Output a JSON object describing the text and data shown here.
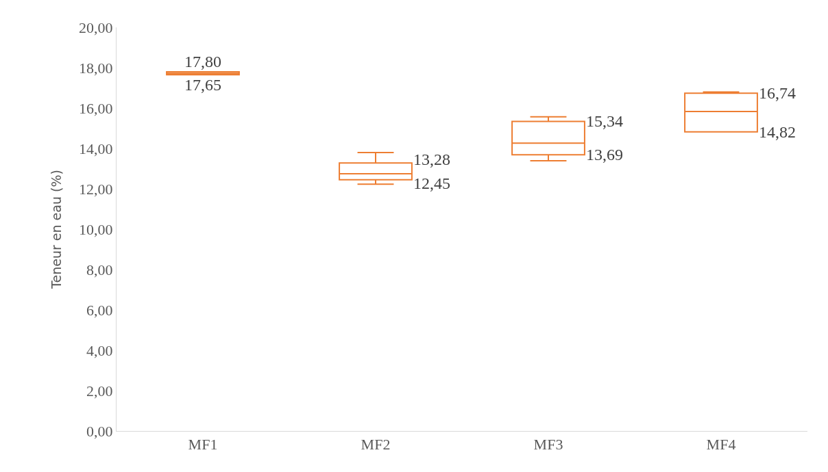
{
  "chart_data": {
    "type": "box",
    "ylabel": "Teneur en eau (%)",
    "categories": [
      "MF1",
      "MF2",
      "MF3",
      "MF4"
    ],
    "boxes": [
      {
        "low": 17.65,
        "q1": 17.65,
        "median": 17.72,
        "q3": 17.8,
        "high": 17.8
      },
      {
        "low": 12.23,
        "q1": 12.45,
        "median": 12.75,
        "q3": 13.28,
        "high": 13.8
      },
      {
        "low": 13.39,
        "q1": 13.69,
        "median": 14.26,
        "q3": 15.34,
        "high": 15.57
      },
      {
        "low": 14.82,
        "q1": 14.82,
        "median": 15.83,
        "q3": 16.74,
        "high": 16.8
      }
    ],
    "color": "#ed7d31",
    "ylim": [
      0,
      20
    ],
    "yticks": [
      {
        "value": 0,
        "label": "0,00"
      },
      {
        "value": 2,
        "label": "2,00"
      },
      {
        "value": 4,
        "label": "4,00"
      },
      {
        "value": 6,
        "label": "6,00"
      },
      {
        "value": 8,
        "label": "8,00"
      },
      {
        "value": 10,
        "label": "10,00"
      },
      {
        "value": 12,
        "label": "12,00"
      },
      {
        "value": 14,
        "label": "14,00"
      },
      {
        "value": 16,
        "label": "16,00"
      },
      {
        "value": 18,
        "label": "18,00"
      },
      {
        "value": 20,
        "label": "20,00"
      }
    ],
    "grid": false,
    "annotations": [
      {
        "text": "17,80",
        "x": "MF1",
        "y": 17.8
      },
      {
        "text": "17,65",
        "x": "MF1",
        "y": 17.65
      },
      {
        "text": "13,28",
        "x": "MF2",
        "y": 13.28
      },
      {
        "text": "12,45",
        "x": "MF2",
        "y": 12.45
      },
      {
        "text": "15,34",
        "x": "MF3",
        "y": 15.34
      },
      {
        "text": "13,69",
        "x": "MF3",
        "y": 13.69
      },
      {
        "text": "16,74",
        "x": "MF4",
        "y": 16.74
      },
      {
        "text": "14,82",
        "x": "MF4",
        "y": 14.82
      }
    ]
  }
}
